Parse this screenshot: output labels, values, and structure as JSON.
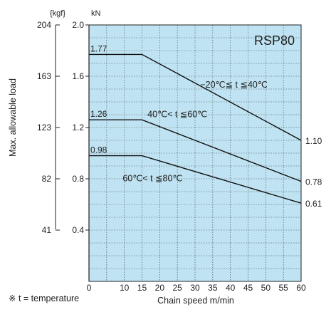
{
  "chart_data": {
    "type": "line",
    "title": "RSP80",
    "xlabel": "Chain speed  m/min",
    "ylabel": "Max. allowable load",
    "y_unit_left": "{kgf}",
    "y_unit_right": "kN",
    "xlim": [
      0,
      60
    ],
    "ylim": [
      0,
      2.0
    ],
    "x_ticks": [
      "0",
      "10",
      "15",
      "20",
      "25",
      "30",
      "35",
      "40",
      "45",
      "50",
      "55",
      "60"
    ],
    "x_tick_values": [
      0,
      10,
      15,
      20,
      25,
      30,
      35,
      40,
      45,
      50,
      55,
      60
    ],
    "y_ticks_kn": [
      "2.0",
      "1.6",
      "1.2",
      "0.8",
      "0.4"
    ],
    "y_tick_values": [
      2.0,
      1.6,
      1.2,
      0.8,
      0.4
    ],
    "y_ticks_kgf": [
      "204",
      "163",
      "123",
      "82",
      "41"
    ],
    "grid": true,
    "grid_color": "#bfe3f2",
    "series": [
      {
        "name": "−20℃≦ t ≦40℃",
        "points": [
          [
            0,
            1.77
          ],
          [
            15,
            1.77
          ],
          [
            60,
            1.1
          ]
        ],
        "start_label": "1.77",
        "end_label": "1.10"
      },
      {
        "name": "40℃< t ≦60℃",
        "points": [
          [
            0,
            1.26
          ],
          [
            15,
            1.26
          ],
          [
            60,
            0.78
          ]
        ],
        "start_label": "1.26",
        "end_label": "0.78"
      },
      {
        "name": "60℃< t ≦80℃",
        "points": [
          [
            0,
            0.98
          ],
          [
            15,
            0.98
          ],
          [
            60,
            0.61
          ]
        ],
        "start_label": "0.98",
        "end_label": "0.61"
      }
    ]
  },
  "footnote": "※  t = temperature"
}
